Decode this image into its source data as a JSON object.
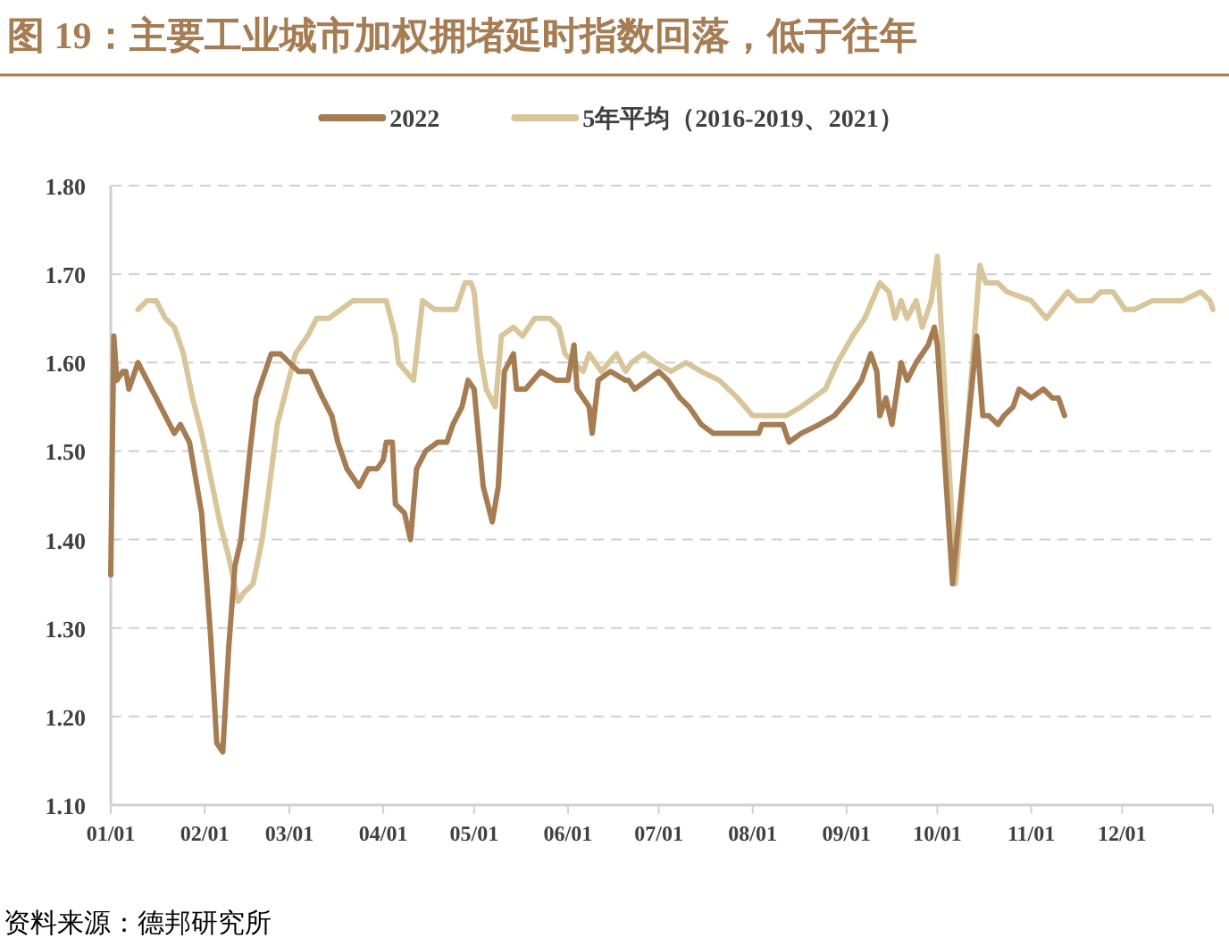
{
  "chart_data": {
    "type": "line",
    "title": "图 19：主要工业城市加权拥堵延时指数回落，低于往年",
    "annotations": [
      "资料来源：德邦研究所"
    ],
    "xlim": [
      "--01-01",
      "--12-31"
    ],
    "xticks": [
      {
        "value": "--01-01",
        "label": "01/01"
      },
      {
        "value": "--02-01",
        "label": "02/01"
      },
      {
        "value": "--03-01",
        "label": "03/01"
      },
      {
        "value": "--04-01",
        "label": "04/01"
      },
      {
        "value": "--05-01",
        "label": "05/01"
      },
      {
        "value": "--06-01",
        "label": "06/01"
      },
      {
        "value": "--07-01",
        "label": "07/01"
      },
      {
        "value": "--08-01",
        "label": "08/01"
      },
      {
        "value": "--09-01",
        "label": "09/01"
      },
      {
        "value": "--10-01",
        "label": "10/01"
      },
      {
        "value": "--11-01",
        "label": "11/01"
      },
      {
        "value": "--12-01",
        "label": "12/01"
      }
    ],
    "ylim": [
      1.1,
      1.8
    ],
    "yticks": [
      {
        "value": 1.1,
        "label": "1.10"
      },
      {
        "value": 1.2,
        "label": "1.20"
      },
      {
        "value": 1.3,
        "label": "1.30"
      },
      {
        "value": 1.4,
        "label": "1.40"
      },
      {
        "value": 1.5,
        "label": "1.50"
      },
      {
        "value": 1.6,
        "label": "1.60"
      },
      {
        "value": 1.7,
        "label": "1.70"
      },
      {
        "value": 1.8,
        "label": "1.80"
      }
    ],
    "grid": "y",
    "legend": "top",
    "series": [
      {
        "name": "2022",
        "color": "#a67c52",
        "x": [
          "--01-01",
          "--01-02",
          "--01-03",
          "--01-05",
          "--01-06",
          "--01-07",
          "--01-10",
          "--01-13",
          "--01-16",
          "--01-19",
          "--01-22",
          "--01-24",
          "--01-27",
          "--01-31",
          "--02-03",
          "--02-05",
          "--02-07",
          "--02-09",
          "--02-11",
          "--02-13",
          "--02-16",
          "--02-18",
          "--02-20",
          "--02-23",
          "--02-26",
          "--03-01",
          "--03-04",
          "--03-08",
          "--03-12",
          "--03-15",
          "--03-17",
          "--03-20",
          "--03-24",
          "--03-27",
          "--03-30",
          "--04-01",
          "--04-02",
          "--04-04",
          "--04-05",
          "--04-08",
          "--04-10",
          "--04-12",
          "--04-15",
          "--04-19",
          "--04-22",
          "--04-24",
          "--04-27",
          "--04-29",
          "--05-01",
          "--05-04",
          "--05-07",
          "--05-09",
          "--05-11",
          "--05-14",
          "--05-15",
          "--05-18",
          "--05-23",
          "--05-28",
          "--06-01",
          "--06-03",
          "--06-04",
          "--06-08",
          "--06-09",
          "--06-11",
          "--06-15",
          "--06-20",
          "--06-21",
          "--06-23",
          "--06-27",
          "--07-01",
          "--07-04",
          "--07-08",
          "--07-11",
          "--07-15",
          "--07-19",
          "--07-24",
          "--07-29",
          "--08-03",
          "--08-04",
          "--08-10",
          "--08-11",
          "--08-13",
          "--08-17",
          "--08-23",
          "--08-28",
          "--09-02",
          "--09-06",
          "--09-09",
          "--09-11",
          "--09-12",
          "--09-14",
          "--09-16",
          "--09-19",
          "--09-21",
          "--09-24",
          "--09-28",
          "--09-30",
          "--10-01",
          "--10-06",
          "--10-14",
          "--10-16",
          "--10-18",
          "--10-21",
          "--10-23",
          "--10-26",
          "--10-28",
          "--11-01",
          "--11-05",
          "--11-08",
          "--11-10",
          "--11-12"
        ],
        "values": [
          1.36,
          1.63,
          1.58,
          1.59,
          1.59,
          1.57,
          1.6,
          1.58,
          1.56,
          1.54,
          1.52,
          1.53,
          1.51,
          1.43,
          1.29,
          1.17,
          1.16,
          1.28,
          1.37,
          1.4,
          1.5,
          1.56,
          1.58,
          1.61,
          1.61,
          1.6,
          1.59,
          1.59,
          1.56,
          1.54,
          1.51,
          1.48,
          1.46,
          1.48,
          1.48,
          1.49,
          1.51,
          1.51,
          1.44,
          1.43,
          1.4,
          1.48,
          1.5,
          1.51,
          1.51,
          1.53,
          1.55,
          1.58,
          1.57,
          1.46,
          1.42,
          1.46,
          1.59,
          1.61,
          1.57,
          1.57,
          1.59,
          1.58,
          1.58,
          1.62,
          1.57,
          1.55,
          1.52,
          1.58,
          1.59,
          1.58,
          1.58,
          1.57,
          1.58,
          1.59,
          1.58,
          1.56,
          1.55,
          1.53,
          1.52,
          1.52,
          1.52,
          1.52,
          1.53,
          1.53,
          1.53,
          1.51,
          1.52,
          1.53,
          1.54,
          1.56,
          1.58,
          1.61,
          1.59,
          1.54,
          1.56,
          1.53,
          1.6,
          1.58,
          1.6,
          1.62,
          1.64,
          1.62,
          1.35,
          1.63,
          1.54,
          1.54,
          1.53,
          1.54,
          1.55,
          1.57,
          1.56,
          1.57,
          1.56,
          1.56,
          1.54
        ]
      },
      {
        "name": "5年平均（2016-2019、2021）",
        "color": "#d9c59a",
        "x": [
          "--01-10",
          "--01-13",
          "--01-16",
          "--01-19",
          "--01-22",
          "--01-25",
          "--01-28",
          "--01-31",
          "--02-03",
          "--02-06",
          "--02-09",
          "--02-12",
          "--02-14",
          "--02-17",
          "--02-20",
          "--02-22",
          "--02-25",
          "--02-28",
          "--03-03",
          "--03-07",
          "--03-10",
          "--03-14",
          "--03-18",
          "--03-22",
          "--03-26",
          "--03-30",
          "--04-02",
          "--04-05",
          "--04-06",
          "--04-11",
          "--04-14",
          "--04-18",
          "--04-21",
          "--04-25",
          "--04-28",
          "--04-30",
          "--05-01",
          "--05-03",
          "--05-05",
          "--05-08",
          "--05-10",
          "--05-14",
          "--05-17",
          "--05-21",
          "--05-26",
          "--05-29",
          "--05-31",
          "--06-03",
          "--06-06",
          "--06-08",
          "--06-12",
          "--06-17",
          "--06-20",
          "--06-22",
          "--06-26",
          "--06-30",
          "--07-05",
          "--07-10",
          "--07-15",
          "--07-21",
          "--07-27",
          "--08-01",
          "--08-06",
          "--08-12",
          "--08-17",
          "--08-21",
          "--08-25",
          "--08-29",
          "--09-03",
          "--09-07",
          "--09-12",
          "--09-15",
          "--09-17",
          "--09-19",
          "--09-21",
          "--09-24",
          "--09-26",
          "--09-29",
          "--10-01",
          "--10-07",
          "--10-15",
          "--10-17",
          "--10-21",
          "--10-24",
          "--11-01",
          "--11-06",
          "--11-13",
          "--11-16",
          "--11-21",
          "--11-24",
          "--11-28",
          "--12-02",
          "--12-05",
          "--12-11",
          "--12-15",
          "--12-21",
          "--12-27",
          "--12-30",
          "--12-31"
        ],
        "values": [
          1.66,
          1.67,
          1.67,
          1.65,
          1.64,
          1.61,
          1.56,
          1.52,
          1.47,
          1.42,
          1.38,
          1.33,
          1.34,
          1.35,
          1.4,
          1.45,
          1.53,
          1.57,
          1.61,
          1.63,
          1.65,
          1.65,
          1.66,
          1.67,
          1.67,
          1.67,
          1.67,
          1.63,
          1.6,
          1.58,
          1.67,
          1.66,
          1.66,
          1.66,
          1.69,
          1.69,
          1.68,
          1.61,
          1.57,
          1.55,
          1.63,
          1.64,
          1.63,
          1.65,
          1.65,
          1.64,
          1.61,
          1.6,
          1.59,
          1.61,
          1.59,
          1.61,
          1.59,
          1.6,
          1.61,
          1.6,
          1.59,
          1.6,
          1.59,
          1.58,
          1.56,
          1.54,
          1.54,
          1.54,
          1.55,
          1.56,
          1.57,
          1.6,
          1.63,
          1.65,
          1.69,
          1.68,
          1.65,
          1.67,
          1.65,
          1.67,
          1.64,
          1.67,
          1.72,
          1.35,
          1.71,
          1.69,
          1.69,
          1.68,
          1.67,
          1.65,
          1.68,
          1.67,
          1.67,
          1.68,
          1.68,
          1.66,
          1.66,
          1.67,
          1.67,
          1.67,
          1.68,
          1.67,
          1.66
        ]
      }
    ]
  }
}
